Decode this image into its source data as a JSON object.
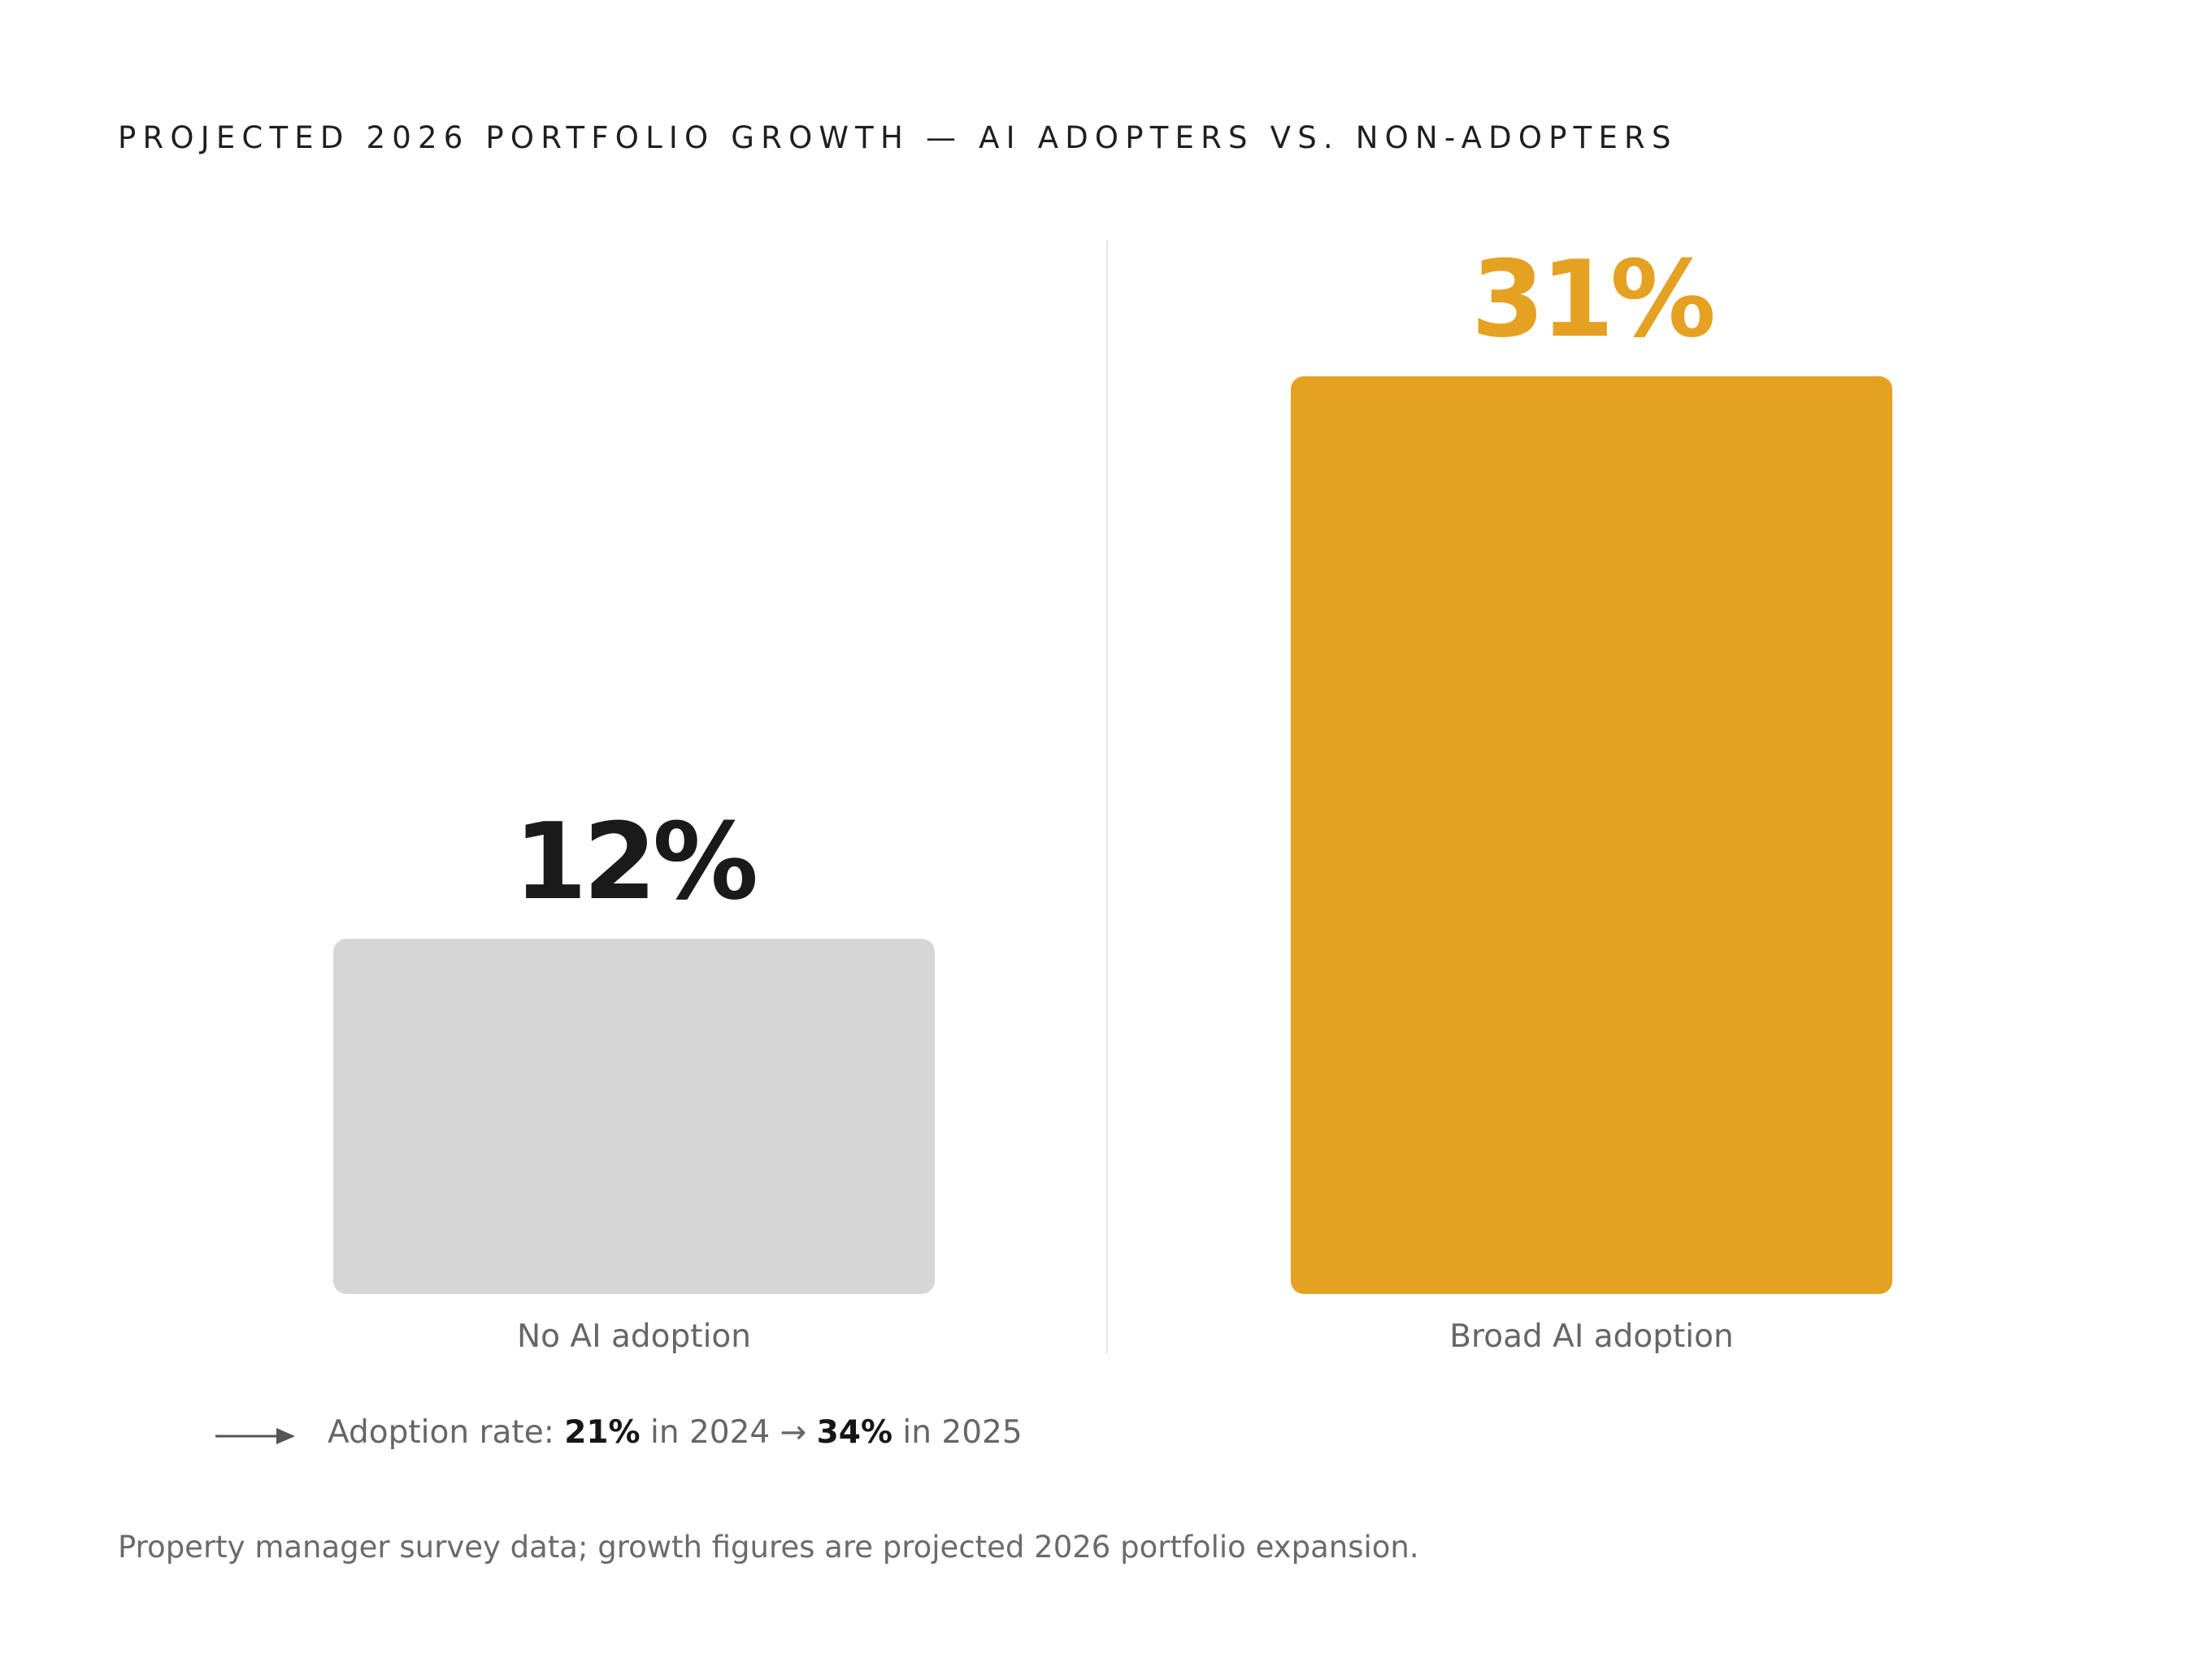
{
  "title": "PROJECTED 2026 PORTFOLIO GROWTH — AI ADOPTERS VS. NON-ADOPTERS",
  "chart_data": {
    "type": "bar",
    "title": "PROJECTED 2026 PORTFOLIO GROWTH — AI ADOPTERS VS. NON-ADOPTERS",
    "categories": [
      "No AI adoption",
      "Broad AI adoption"
    ],
    "values": [
      12,
      31
    ],
    "value_labels": [
      "12%",
      "31%"
    ],
    "unit": "%",
    "ylim": [
      0,
      31
    ],
    "grid": false,
    "bar_colors": [
      "#d6d6d6",
      "#e5a122"
    ],
    "value_label_colors": [
      "#1a1a1a",
      "#e5a122"
    ]
  },
  "adoption_note": {
    "icon": "arrow-right-icon",
    "prefix": "Adoption rate: ",
    "rate_2024": "21%",
    "mid": " in 2024 → ",
    "rate_2025": "34%",
    "suffix": " in 2025"
  },
  "footnote": "Property manager survey data; growth figures are projected 2026 portfolio expansion."
}
